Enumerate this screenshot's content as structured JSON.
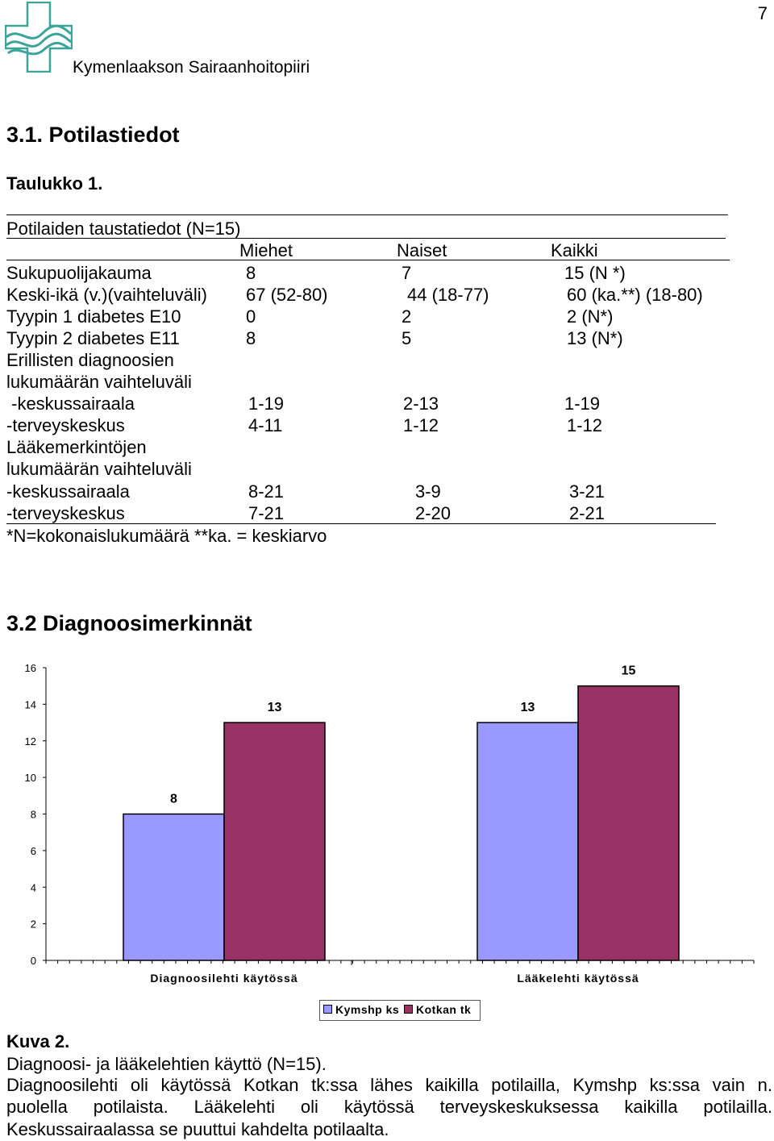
{
  "page_number": "7",
  "org_name": "Kymenlaakson Sairaanhoitopiiri",
  "section1_title": "3.1. Potilastiedot",
  "table_caption": "Taulukko 1.",
  "table_title": "Potilaiden taustatiedot (N=15)",
  "columns": [
    "Miehet",
    "Naiset",
    "Kaikki"
  ],
  "rows": [
    {
      "label": "Sukupuolijakauma",
      "c1": "8",
      "c2": "7",
      "c3": "15  (N *)"
    },
    {
      "label": "Keski-ikä (v.)(vaihteluväli)",
      "c1": "67 (52-80)",
      "c2": "44 (18-77)",
      "c3": "60 (ka.**) (18-80)"
    },
    {
      "label": "Tyypin 1 diabetes E10",
      "c1": "0",
      "c2": "2",
      "c3": "2   (N*)"
    },
    {
      "label": "Tyypin 2 diabetes E11",
      "c1": "8",
      "c2": "5",
      "c3": "13  (N*)"
    },
    {
      "label": "Erillisten diagnoosien",
      "c1": "",
      "c2": "",
      "c3": ""
    },
    {
      "label": "lukumäärän vaihteluväli",
      "c1": "",
      "c2": "",
      "c3": ""
    },
    {
      "label": " -keskussairaala",
      "c1": "1-19",
      "c2": "2-13",
      "c3": "1-19"
    },
    {
      "label": "-terveyskeskus",
      "c1": "4-11",
      "c2": "1-12",
      "c3": "1-12"
    },
    {
      "label": "Lääkemerkintöjen",
      "c1": "",
      "c2": "",
      "c3": ""
    },
    {
      "label": "lukumäärän vaihteluväli",
      "c1": "",
      "c2": "",
      "c3": ""
    },
    {
      "label": "-keskussairaala",
      "c1": "8-21",
      "c2": "3-9",
      "c3": "3-21"
    },
    {
      "label": "-terveyskeskus",
      "c1": "7-21",
      "c2": "2-20",
      "c3": "2-21"
    }
  ],
  "table_footnote": "*N=kokonaislukumäärä **ka. = keskiarvo",
  "section2_title": "3.2 Diagnoosimerkinnät",
  "chart_data": {
    "type": "bar",
    "categories": [
      "Diagnoosilehti käytössä",
      "Lääkelehti käytössä"
    ],
    "series": [
      {
        "name": "Kymshp ks",
        "values": [
          8,
          13
        ],
        "color": "#9999ff"
      },
      {
        "name": "Kotkan tk",
        "values": [
          13,
          15
        ],
        "color": "#993366"
      }
    ],
    "ylim": [
      0,
      16
    ],
    "yticks": [
      "0",
      "2",
      "4",
      "6",
      "8",
      "10",
      "12",
      "14",
      "16"
    ],
    "grid": false,
    "legend": "bottom",
    "data_labels": true
  },
  "figure_caption": "Kuva 2.",
  "figure_subtitle": "Diagnoosi- ja lääkelehtien käyttö (N=15).",
  "body_lines": [
    "Diagnoosilehti oli käytössä Kotkan tk:ssa lähes kaikilla potilailla, Kymshp ks:ssa vain n.",
    "puolella potilaista. Lääkelehti oli käytössä terveyskeskuksessa kaikilla potilailla.",
    "Keskussairaalassa se puuttui kahdelta potilaalta."
  ]
}
